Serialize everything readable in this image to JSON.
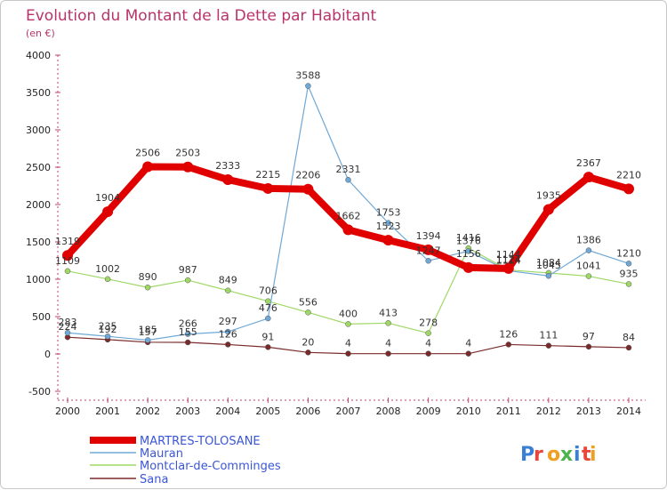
{
  "chart_data": {
    "type": "line",
    "title": "Evolution du Montant de la Dette par Habitant",
    "subtitle": "(en €)",
    "x": [
      "2000",
      "2001",
      "2002",
      "2003",
      "2004",
      "2005",
      "2006",
      "2007",
      "2008",
      "2009",
      "2010",
      "2011",
      "2012",
      "2013",
      "2014"
    ],
    "ylim": [
      -500,
      4000
    ],
    "yticks": [
      -500,
      0,
      500,
      1000,
      1500,
      2000,
      2500,
      3000,
      3500,
      4000
    ],
    "grid": false,
    "legend_position": "bottom-left",
    "series": [
      {
        "name": "MARTRES-TOLOSANE",
        "color": "#e00000",
        "values": [
          1319,
          1904,
          2506,
          2503,
          2333,
          2215,
          2206,
          1662,
          1523,
          1394,
          1156,
          1144,
          1935,
          2367,
          2210
        ]
      },
      {
        "name": "Mauran",
        "color": "#6fa8d6",
        "values": [
          283,
          235,
          185,
          266,
          297,
          476,
          3588,
          2331,
          1753,
          1247,
          1376,
          1114,
          1045,
          1386,
          1210
        ]
      },
      {
        "name": "Montclar-de-Comminges",
        "color": "#9ed864",
        "values": [
          1109,
          1002,
          890,
          987,
          849,
          706,
          556,
          400,
          413,
          278,
          1416,
          1124,
          1084,
          1041,
          935
        ]
      },
      {
        "name": "Sana",
        "color": "#7a2a2a",
        "values": [
          224,
          192,
          157,
          155,
          126,
          91,
          20,
          4,
          4,
          4,
          4,
          126,
          111,
          97,
          84
        ]
      }
    ],
    "data_labels": [
      [
        "1319",
        "1904",
        "2506",
        "2503",
        "2333",
        "2215",
        "2206",
        "1662",
        "1523",
        "1394",
        "1156",
        "1144",
        "1935",
        "2367",
        "2210"
      ],
      [
        "283",
        "235",
        "185",
        "266",
        "297",
        "476",
        "3588",
        "2331",
        "1753",
        "1247",
        "1376",
        "1114",
        "1045",
        "1386",
        "1210"
      ],
      [
        "1109",
        "1002",
        "890",
        "987",
        "849",
        "706",
        "556",
        "400",
        "413",
        "278",
        "1416",
        "1124",
        "1084",
        "1041",
        "935"
      ],
      [
        "224",
        "192",
        "157",
        "155",
        "126",
        "91",
        "20",
        "4",
        "4",
        "4",
        "4",
        "126",
        "111",
        "97",
        "84"
      ]
    ]
  },
  "logo": {
    "text": "Proxiti"
  }
}
